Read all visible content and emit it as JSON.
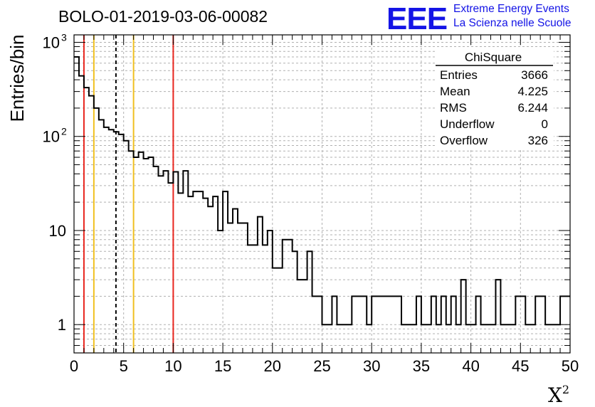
{
  "title": "BOLO-01-2019-03-06-00082",
  "logo": {
    "mark": "EEE",
    "line1": "Extreme Energy Events",
    "line2": "La Scienza nelle Scuole",
    "color": "#1414e6"
  },
  "stats": {
    "header": "ChiSquare",
    "rows": [
      {
        "label": "Entries",
        "value": "3666"
      },
      {
        "label": "Mean",
        "value": "4.225"
      },
      {
        "label": "RMS",
        "value": "6.244"
      },
      {
        "label": "Underflow",
        "value": "0"
      },
      {
        "label": "Overflow",
        "value": "326"
      }
    ]
  },
  "chart_data": {
    "type": "histogram",
    "title": "BOLO-01-2019-03-06-00082",
    "xlabel": "X²",
    "ylabel": "Entries/bin",
    "xlim": [
      0,
      50
    ],
    "ylim": [
      0.5,
      1200
    ],
    "yscale": "log",
    "grid": true,
    "bin_width": 0.5,
    "x_ticks": [
      "0",
      "5",
      "10",
      "15",
      "20",
      "25",
      "30",
      "35",
      "40",
      "45",
      "50"
    ],
    "y_ticks": [
      {
        "value": 1,
        "label": "1"
      },
      {
        "value": 10,
        "label": "10"
      },
      {
        "value": 100,
        "label": "10",
        "exp": "2"
      },
      {
        "value": 1000,
        "label": "10",
        "exp": "3"
      }
    ],
    "values": [
      700,
      440,
      330,
      270,
      200,
      150,
      125,
      118,
      112,
      105,
      90,
      70,
      60,
      68,
      58,
      60,
      48,
      38,
      43,
      32,
      42,
      25,
      43,
      23,
      26,
      26,
      22,
      18,
      23,
      10,
      26,
      12,
      17,
      12,
      12,
      7,
      7,
      14,
      7,
      10,
      4,
      4,
      8,
      8,
      6,
      3,
      3,
      6,
      2,
      2,
      1,
      1,
      2,
      1,
      1,
      1,
      2,
      2,
      2,
      1,
      2,
      2,
      2,
      2,
      2,
      2,
      1,
      1,
      1,
      2,
      1,
      1,
      2,
      1,
      2,
      1,
      2,
      1,
      3,
      1,
      1,
      2,
      1,
      1,
      1,
      3,
      1,
      1,
      1,
      2,
      2,
      1,
      1,
      2,
      2,
      1,
      1,
      1,
      2,
      2
    ],
    "reference_lines": [
      {
        "x": 1,
        "style": "solid",
        "color": "#e8261e"
      },
      {
        "x": 2,
        "style": "solid",
        "color": "#f0c020"
      },
      {
        "x": 4.225,
        "style": "dashed",
        "color": "#000000"
      },
      {
        "x": 6,
        "style": "solid",
        "color": "#f0c020"
      },
      {
        "x": 10,
        "style": "solid",
        "color": "#e8261e"
      }
    ]
  }
}
